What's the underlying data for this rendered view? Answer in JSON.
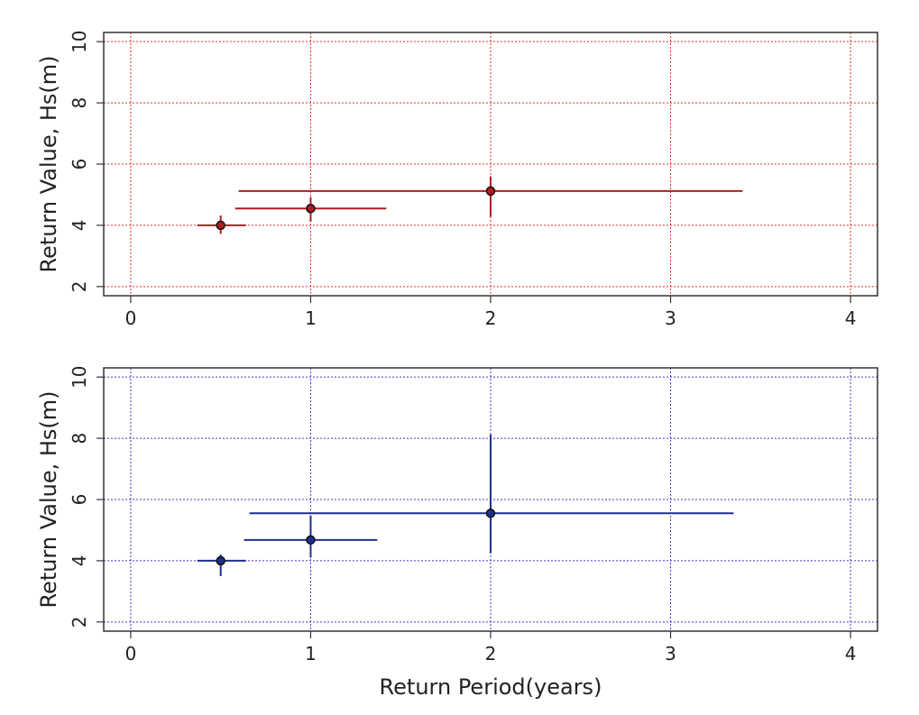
{
  "chart_data": [
    {
      "type": "scatter",
      "title": "",
      "xlabel": "",
      "ylabel": "Return Value, Hs(m)",
      "xlim": [
        -0.15,
        4.15
      ],
      "ylim": [
        1.7,
        10.3
      ],
      "xticks": [
        0,
        1,
        2,
        3,
        4
      ],
      "yticks": [
        2,
        4,
        6,
        8,
        10
      ],
      "grid": true,
      "color": "#b01c22",
      "grid_color": "#e03030",
      "points": [
        {
          "x": 0.5,
          "y": 4.0,
          "x_low": 0.37,
          "x_high": 0.64,
          "y_low": 3.72,
          "y_high": 4.32
        },
        {
          "x": 1.0,
          "y": 4.55,
          "x_low": 0.58,
          "x_high": 1.42,
          "y_low": 4.12,
          "y_high": 4.92
        },
        {
          "x": 2.0,
          "y": 5.12,
          "x_low": 0.6,
          "x_high": 3.4,
          "y_low": 4.28,
          "y_high": 5.6
        }
      ]
    },
    {
      "type": "scatter",
      "title": "",
      "xlabel": "Return Period(years)",
      "ylabel": "Return Value, Hs(m)",
      "xlim": [
        -0.15,
        4.15
      ],
      "ylim": [
        1.7,
        10.3
      ],
      "xticks": [
        0,
        1,
        2,
        3,
        4
      ],
      "yticks": [
        2,
        4,
        6,
        8,
        10
      ],
      "grid": true,
      "color": "#1f2f8f",
      "grid_color": "#3b3bcc",
      "points": [
        {
          "x": 0.5,
          "y": 4.0,
          "x_low": 0.37,
          "x_high": 0.64,
          "y_low": 3.5,
          "y_high": 4.2
        },
        {
          "x": 1.0,
          "y": 4.68,
          "x_low": 0.63,
          "x_high": 1.37,
          "y_low": 4.1,
          "y_high": 5.48
        },
        {
          "x": 2.0,
          "y": 5.55,
          "x_low": 0.66,
          "x_high": 3.35,
          "y_low": 4.25,
          "y_high": 8.12
        }
      ]
    }
  ]
}
